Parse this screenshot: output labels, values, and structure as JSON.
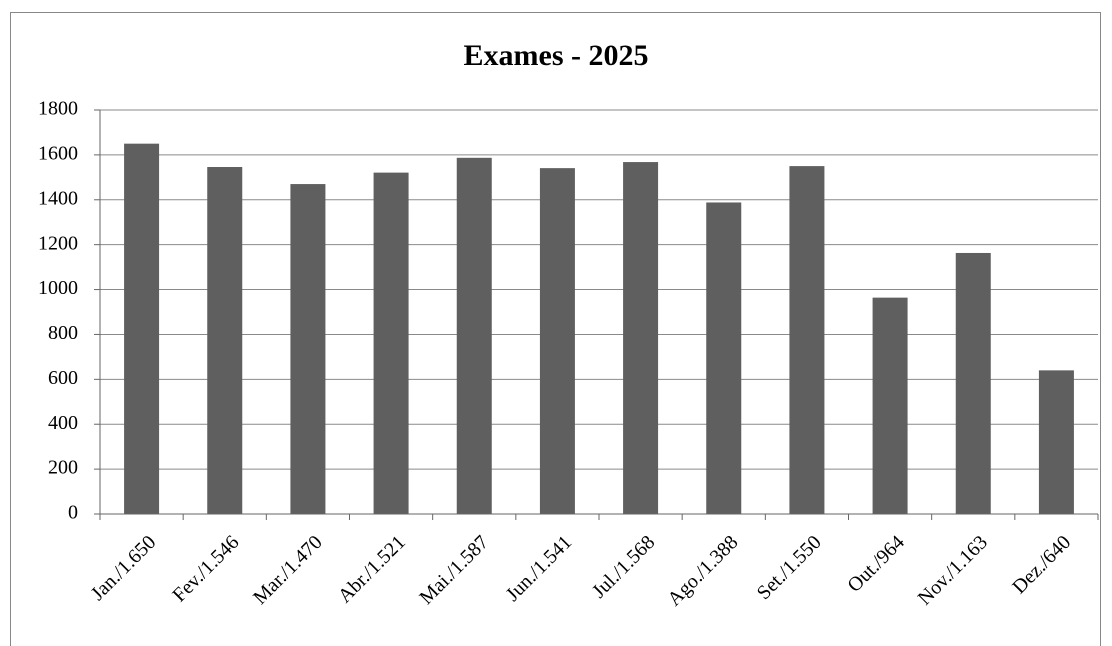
{
  "chart_data": {
    "type": "bar",
    "title": "Exames - 2025",
    "categories": [
      "Jan./1.650",
      "Fev./1.546",
      "Mar./1.470",
      "Abr./1.521",
      "Mai./1.587",
      "Jun./1.541",
      "Jul./1.568",
      "Ago./1.388",
      "Set./1.550",
      "Out./964",
      "Nov./1.163",
      "Dez./640"
    ],
    "values": [
      1650,
      1546,
      1470,
      1521,
      1587,
      1541,
      1568,
      1388,
      1550,
      964,
      1163,
      640
    ],
    "color": "#5f5f5f",
    "ylim": [
      0,
      1800
    ],
    "yticks": [
      0,
      200,
      400,
      600,
      800,
      1000,
      1200,
      1400,
      1600,
      1800
    ],
    "grid": true
  }
}
